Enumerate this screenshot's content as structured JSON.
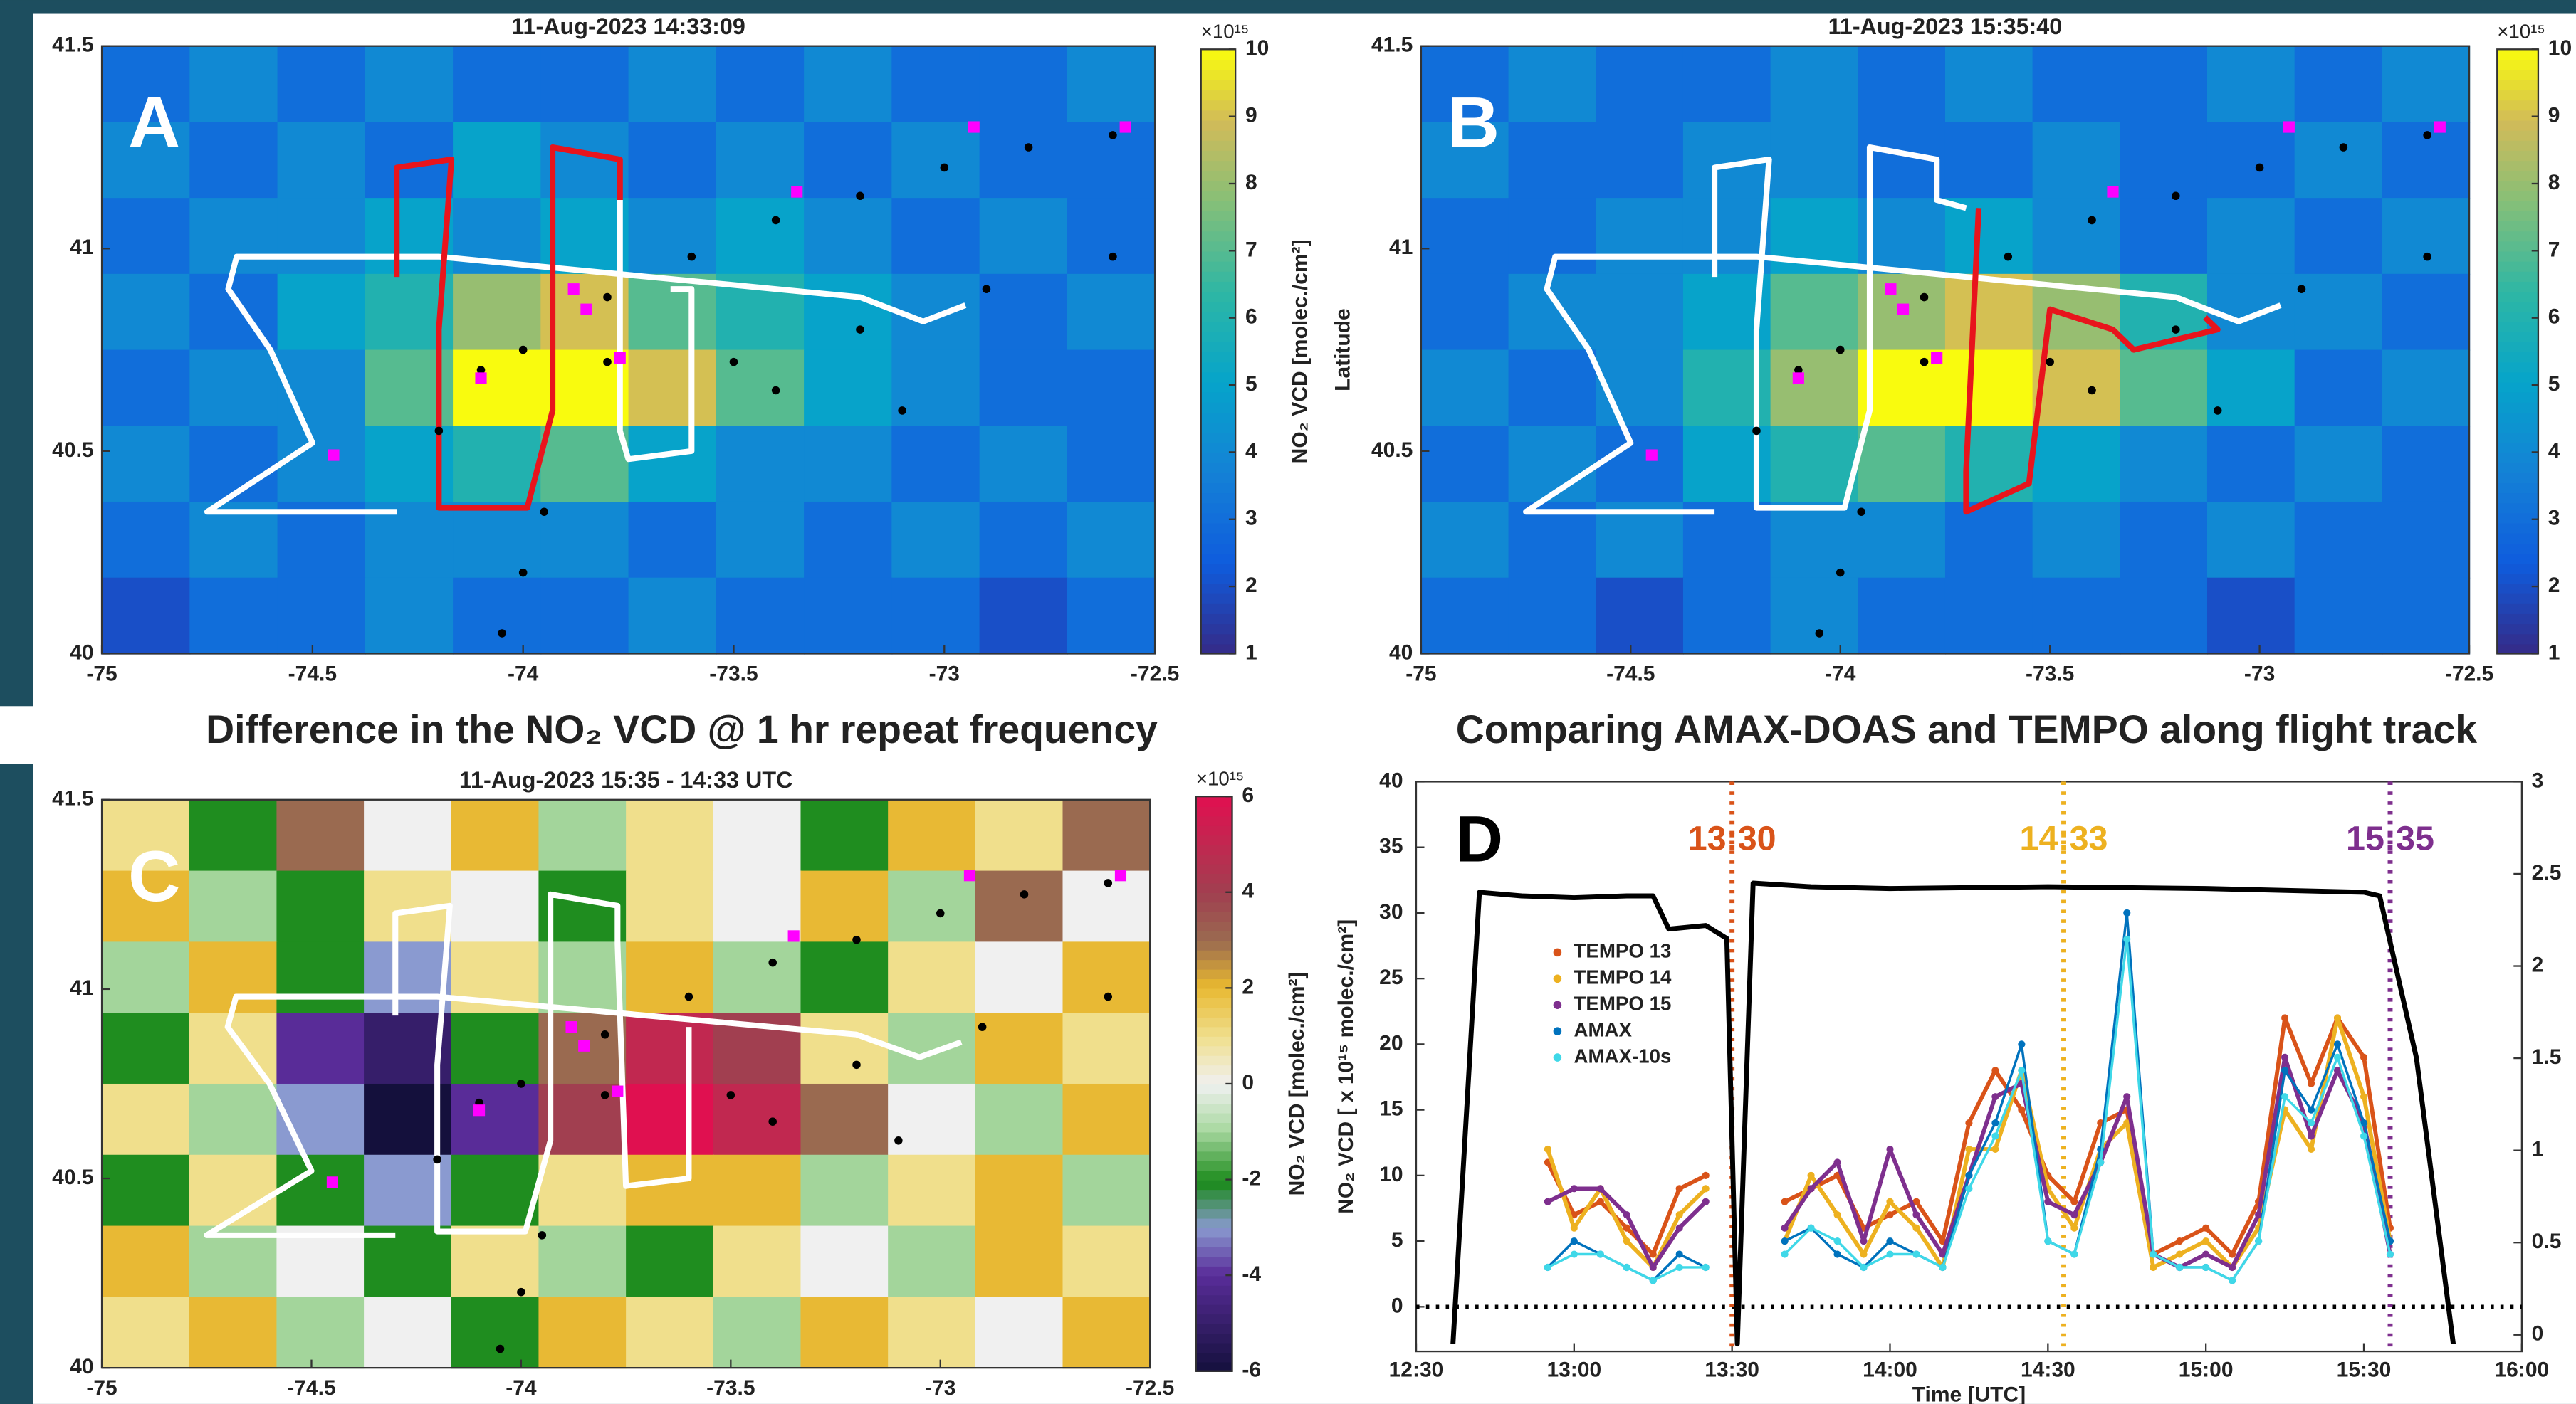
{
  "headings": [
    "Difference in the NO₂ VCD @ 1 hr repeat frequency",
    "Comparing AMAX-DOAS and TEMPO along flight track"
  ],
  "chart_data": [
    {
      "type": "heatmap",
      "title": "11-Aug-2023 14:33:09",
      "panel_label": "A",
      "colorbar_label": "NO₂ VCD [molec./cm²]",
      "exponent_label": "×10¹⁵",
      "colormap": "parula",
      "xlim": [
        -75,
        -72.5
      ],
      "ylim": [
        40,
        41.5
      ],
      "xticks": [
        -75,
        -74.5,
        -74,
        -73.5,
        -73,
        -72.5
      ],
      "yticks": [
        40,
        40.5,
        41,
        41.5
      ],
      "clim": [
        1,
        10
      ],
      "cticks": [
        1,
        2,
        3,
        4,
        5,
        6,
        7,
        8,
        9,
        10
      ],
      "z": [
        [
          3,
          4,
          3,
          4,
          3,
          3,
          4,
          3,
          4,
          3,
          3,
          4
        ],
        [
          4,
          3,
          4,
          3,
          5,
          4,
          3,
          4,
          3,
          4,
          3,
          3
        ],
        [
          3,
          4,
          4,
          5,
          4,
          5,
          4,
          5,
          4,
          3,
          4,
          3
        ],
        [
          4,
          3,
          5,
          6,
          8,
          9,
          7,
          6,
          5,
          4,
          3,
          4
        ],
        [
          3,
          4,
          4,
          7,
          10,
          10,
          9,
          7,
          5,
          4,
          3,
          3
        ],
        [
          4,
          3,
          4,
          5,
          6,
          7,
          5,
          4,
          4,
          3,
          4,
          3
        ],
        [
          3,
          4,
          3,
          4,
          4,
          4,
          3,
          4,
          3,
          4,
          3,
          4
        ],
        [
          2,
          3,
          3,
          4,
          3,
          3,
          4,
          3,
          3,
          3,
          2,
          3
        ]
      ],
      "tracks": [
        {
          "color": "#ffffff",
          "lon": [
            -74.3,
            -74.75,
            -74.5,
            -74.6,
            -74.7,
            -74.68,
            -74.2,
            -73.9,
            -73.7,
            -73.2,
            -73.05,
            -72.95
          ],
          "lat": [
            40.35,
            40.35,
            40.52,
            40.75,
            40.9,
            40.98,
            40.98,
            40.95,
            40.93,
            40.88,
            40.82,
            40.86
          ]
        },
        {
          "color": "#ffffff",
          "lon": [
            -73.77,
            -73.77,
            -73.75,
            -73.6,
            -73.6,
            -73.65
          ],
          "lat": [
            41.12,
            40.55,
            40.48,
            40.5,
            40.9,
            40.9
          ]
        },
        {
          "color": "#e8141c",
          "lon": [
            -74.3,
            -74.3,
            -74.17,
            -74.2,
            -74.2,
            -73.99,
            -73.93,
            -73.93,
            -73.77,
            -73.77
          ],
          "lat": [
            40.93,
            41.2,
            41.22,
            40.8,
            40.36,
            40.36,
            40.6,
            41.25,
            41.22,
            41.12
          ]
        }
      ],
      "dots": {
        "color": "#000000",
        "lon": [
          -74.2,
          -74.0,
          -73.8,
          -73.6,
          -73.4,
          -73.2,
          -73.0,
          -72.8,
          -72.6,
          -74.1,
          -73.8,
          -73.5,
          -73.2,
          -72.9,
          -72.6,
          -74.05,
          -74.0,
          -73.95,
          -73.4,
          -73.1
        ],
        "lat": [
          40.55,
          40.75,
          40.88,
          40.98,
          41.07,
          41.13,
          41.2,
          41.25,
          41.28,
          40.7,
          40.72,
          40.72,
          40.8,
          40.9,
          40.98,
          40.05,
          40.2,
          40.35,
          40.65,
          40.6
        ]
      },
      "sites": {
        "color": "#ff00ff",
        "lon": [
          -74.45,
          -74.1,
          -73.88,
          -73.85,
          -73.77,
          -73.35,
          -72.93,
          -72.57
        ],
        "lat": [
          40.49,
          40.68,
          40.9,
          40.85,
          40.73,
          41.14,
          41.3,
          41.3
        ]
      }
    },
    {
      "type": "heatmap",
      "title": "11-Aug-2023 15:35:40",
      "panel_label": "B",
      "ylabel": "Latitude",
      "exponent_label": "×10¹⁵",
      "colormap": "parula",
      "xlim": [
        -75,
        -72.5
      ],
      "ylim": [
        40,
        41.5
      ],
      "xticks": [
        -75,
        -74.5,
        -74,
        -73.5,
        -73,
        -72.5
      ],
      "yticks": [
        40,
        40.5,
        41,
        41.5
      ],
      "clim": [
        1,
        10
      ],
      "cticks": [
        1,
        2,
        3,
        4,
        5,
        6,
        7,
        8,
        9,
        10
      ],
      "z": [
        [
          3,
          4,
          3,
          3,
          4,
          3,
          4,
          3,
          3,
          4,
          3,
          4
        ],
        [
          4,
          3,
          3,
          4,
          4,
          3,
          3,
          4,
          3,
          3,
          4,
          3
        ],
        [
          3,
          3,
          4,
          4,
          5,
          4,
          5,
          4,
          3,
          4,
          3,
          4
        ],
        [
          3,
          4,
          4,
          5,
          7,
          8,
          9,
          8,
          6,
          4,
          4,
          3
        ],
        [
          4,
          3,
          4,
          6,
          8,
          10,
          10,
          9,
          7,
          5,
          3,
          4
        ],
        [
          3,
          4,
          3,
          5,
          6,
          7,
          6,
          5,
          4,
          3,
          4,
          3
        ],
        [
          4,
          3,
          4,
          3,
          4,
          4,
          3,
          4,
          3,
          4,
          3,
          3
        ],
        [
          3,
          3,
          2,
          3,
          4,
          3,
          3,
          3,
          3,
          2,
          3,
          3
        ]
      ],
      "tracks": [
        {
          "color": "#ffffff",
          "lon": [
            -74.3,
            -74.75,
            -74.5,
            -74.6,
            -74.7,
            -74.68,
            -74.2,
            -73.9,
            -73.7,
            -73.2,
            -73.05,
            -72.95
          ],
          "lat": [
            40.35,
            40.35,
            40.52,
            40.75,
            40.9,
            40.98,
            40.98,
            40.95,
            40.93,
            40.88,
            40.82,
            40.86
          ]
        },
        {
          "color": "#ffffff",
          "lon": [
            -74.3,
            -74.3,
            -74.17,
            -74.2,
            -74.2,
            -73.99,
            -73.93,
            -73.93,
            -73.77,
            -73.77,
            -73.7
          ],
          "lat": [
            40.93,
            41.2,
            41.22,
            40.8,
            40.36,
            40.36,
            40.6,
            41.25,
            41.22,
            41.12,
            41.1
          ]
        },
        {
          "color": "#e8141c",
          "lon": [
            -73.67,
            -73.7,
            -73.7,
            -73.55,
            -73.5,
            -73.35,
            -73.3,
            -73.1,
            -73.13
          ],
          "lat": [
            41.1,
            40.45,
            40.35,
            40.42,
            40.85,
            40.8,
            40.75,
            40.8,
            40.83
          ]
        }
      ],
      "dots": {
        "color": "#000000",
        "lon": [
          -74.2,
          -74.0,
          -73.8,
          -73.6,
          -73.4,
          -73.2,
          -73.0,
          -72.8,
          -72.6,
          -74.1,
          -73.8,
          -73.5,
          -73.2,
          -72.9,
          -72.6,
          -74.05,
          -74.0,
          -73.95,
          -73.4,
          -73.1
        ],
        "lat": [
          40.55,
          40.75,
          40.88,
          40.98,
          41.07,
          41.13,
          41.2,
          41.25,
          41.28,
          40.7,
          40.72,
          40.72,
          40.8,
          40.9,
          40.98,
          40.05,
          40.2,
          40.35,
          40.65,
          40.6
        ]
      },
      "sites": {
        "color": "#ff00ff",
        "lon": [
          -74.45,
          -74.1,
          -73.88,
          -73.85,
          -73.77,
          -73.35,
          -72.93,
          -72.57
        ],
        "lat": [
          40.49,
          40.68,
          40.9,
          40.85,
          40.73,
          41.14,
          41.3,
          41.3
        ]
      }
    },
    {
      "type": "heatmap",
      "title": "11-Aug-2023 15:35 - 14:33 UTC",
      "panel_label": "C",
      "colorbar_label": "NO₂ VCD [molec./cm²]",
      "exponent_label": "×10¹⁵",
      "colormap": "diverging",
      "xlim": [
        -75,
        -72.5
      ],
      "ylim": [
        40,
        41.5
      ],
      "xticks": [
        -75,
        -74.5,
        -74,
        -73.5,
        -73,
        -72.5
      ],
      "yticks": [
        40,
        40.5,
        41,
        41.5
      ],
      "clim": [
        -6,
        6
      ],
      "cticks": [
        -6,
        -4,
        -2,
        0,
        2,
        4,
        6
      ],
      "z": [
        [
          1,
          -2,
          3,
          0,
          2,
          -1,
          1,
          0,
          -2,
          2,
          1,
          3
        ],
        [
          2,
          -1,
          -2,
          1,
          0,
          -2,
          1,
          0,
          2,
          -1,
          3,
          0
        ],
        [
          -1,
          2,
          -2,
          -3,
          1,
          -1,
          2,
          -1,
          -2,
          1,
          0,
          2
        ],
        [
          -2,
          1,
          -4,
          -5,
          -2,
          3,
          5,
          4,
          1,
          -1,
          2,
          1
        ],
        [
          1,
          -1,
          -3,
          -6,
          -4,
          4,
          6,
          5,
          3,
          0,
          -1,
          2
        ],
        [
          -2,
          1,
          -2,
          -3,
          -2,
          1,
          2,
          2,
          -1,
          1,
          2,
          -1
        ],
        [
          2,
          -1,
          0,
          -2,
          1,
          -1,
          -2,
          1,
          0,
          -1,
          2,
          1
        ],
        [
          1,
          2,
          -1,
          0,
          -2,
          2,
          1,
          -1,
          2,
          1,
          0,
          2
        ]
      ],
      "tracks": [
        {
          "color": "#ffffff",
          "lon": [
            -74.3,
            -74.75,
            -74.5,
            -74.6,
            -74.7,
            -74.68,
            -74.2,
            -73.9,
            -73.7,
            -73.2,
            -73.05,
            -72.95
          ],
          "lat": [
            40.35,
            40.35,
            40.52,
            40.75,
            40.9,
            40.98,
            40.98,
            40.95,
            40.93,
            40.88,
            40.82,
            40.86
          ]
        },
        {
          "color": "#ffffff",
          "lon": [
            -74.3,
            -74.3,
            -74.17,
            -74.2,
            -74.2,
            -73.99,
            -73.93,
            -73.93,
            -73.77,
            -73.77,
            -73.75,
            -73.6,
            -73.6
          ],
          "lat": [
            40.93,
            41.2,
            41.22,
            40.8,
            40.36,
            40.36,
            40.6,
            41.25,
            41.22,
            41.12,
            40.48,
            40.5,
            40.9
          ]
        }
      ],
      "dots": {
        "color": "#000000",
        "lon": [
          -74.2,
          -74.0,
          -73.8,
          -73.6,
          -73.4,
          -73.2,
          -73.0,
          -72.8,
          -72.6,
          -74.1,
          -73.8,
          -73.5,
          -73.2,
          -72.9,
          -72.6,
          -74.05,
          -74.0,
          -73.95,
          -73.4,
          -73.1
        ],
        "lat": [
          40.55,
          40.75,
          40.88,
          40.98,
          41.07,
          41.13,
          41.2,
          41.25,
          41.28,
          40.7,
          40.72,
          40.72,
          40.8,
          40.9,
          40.98,
          40.05,
          40.2,
          40.35,
          40.65,
          40.6
        ]
      },
      "sites": {
        "color": "#ff00ff",
        "lon": [
          -74.45,
          -74.1,
          -73.88,
          -73.85,
          -73.77,
          -73.35,
          -72.93,
          -72.57
        ],
        "lat": [
          40.49,
          40.68,
          40.9,
          40.85,
          40.73,
          41.14,
          41.3,
          41.3
        ]
      }
    },
    {
      "type": "line",
      "panel_label": "D",
      "xlabel": "Time [UTC]",
      "ylabel": "NO₂ VCD [ x 10¹⁵ molec./cm²]",
      "legend": "upper left",
      "xlim": [
        "12:30",
        "16:00"
      ],
      "xticks": [
        "12:30",
        "13:00",
        "13:30",
        "14:00",
        "14:30",
        "15:00",
        "15:30",
        "16:00"
      ],
      "ylim": [
        -3.4,
        40
      ],
      "yticks": [
        0,
        5,
        10,
        15,
        20,
        25,
        30,
        35,
        40
      ],
      "y2lim": [
        -0.09,
        3
      ],
      "y2ticks": [
        0,
        0.5,
        1,
        1.5,
        2,
        2.5,
        3
      ],
      "x": [
        "12:55",
        "13:00",
        "13:05",
        "13:10",
        "13:15",
        "13:20",
        "13:25",
        "13:30",
        "13:40",
        "13:45",
        "13:50",
        "13:55",
        "14:00",
        "14:05",
        "14:10",
        "14:15",
        "14:20",
        "14:25",
        "14:30",
        "14:35",
        "14:40",
        "14:45",
        "14:50",
        "14:55",
        "15:00",
        "15:05",
        "15:10",
        "15:15",
        "15:20",
        "15:25",
        "15:30",
        "15:35"
      ],
      "series": [
        {
          "name": "TEMPO 13",
          "color": "#d95319",
          "values": [
            11,
            7,
            8,
            6,
            4,
            9,
            10,
            null,
            8,
            9,
            10,
            6,
            7,
            8,
            5,
            14,
            18,
            15,
            10,
            8,
            14,
            15,
            4,
            5,
            6,
            4,
            8,
            22,
            17,
            22,
            19,
            6
          ]
        },
        {
          "name": "TEMPO 14",
          "color": "#edb120",
          "values": [
            12,
            6,
            9,
            5,
            3,
            7,
            9,
            null,
            5,
            10,
            7,
            4,
            8,
            6,
            3,
            12,
            12,
            18,
            9,
            6,
            12,
            14,
            3,
            4,
            5,
            3,
            6,
            15,
            12,
            22,
            16,
            5
          ]
        },
        {
          "name": "TEMPO 15",
          "color": "#7e2f8e",
          "values": [
            8,
            9,
            9,
            7,
            3,
            6,
            8,
            null,
            6,
            9,
            11,
            5,
            12,
            7,
            4,
            10,
            16,
            17,
            8,
            7,
            11,
            16,
            4,
            3,
            4,
            3,
            7,
            19,
            13,
            18,
            14,
            4
          ]
        },
        {
          "name": "AMAX",
          "color": "#0072bd",
          "values": [
            3,
            5,
            4,
            3,
            2,
            4,
            3,
            null,
            5,
            6,
            4,
            3,
            5,
            4,
            3,
            10,
            14,
            20,
            5,
            4,
            12,
            30,
            4,
            3,
            3,
            2,
            5,
            18,
            15,
            20,
            14,
            5
          ]
        },
        {
          "name": "AMAX-10s",
          "color": "#3fd8e8",
          "values": [
            3,
            4,
            4,
            3,
            2,
            3,
            3,
            null,
            4,
            6,
            5,
            3,
            4,
            4,
            3,
            9,
            13,
            18,
            5,
            4,
            11,
            28,
            4,
            3,
            3,
            2,
            5,
            16,
            14,
            19,
            13,
            4
          ]
        }
      ],
      "altitude": {
        "color": "#000000",
        "axis": "y2",
        "x": [
          "12:37",
          "12:42",
          "12:50",
          "13:00",
          "13:10",
          "13:15",
          "13:18",
          "13:25",
          "13:29",
          "13:31",
          "13:34",
          "13:45",
          "14:00",
          "14:30",
          "15:00",
          "15:30",
          "15:33",
          "15:40",
          "15:47"
        ],
        "values": [
          -0.05,
          2.4,
          2.38,
          2.37,
          2.38,
          2.38,
          2.2,
          2.22,
          2.15,
          -0.05,
          2.45,
          2.43,
          2.42,
          2.43,
          2.42,
          2.4,
          2.38,
          1.5,
          -0.05
        ]
      },
      "reference_line": 0,
      "vlines": [
        {
          "x": "13:30",
          "color": "#d95319"
        },
        {
          "x": "14:33",
          "color": "#edb120"
        },
        {
          "x": "15:35",
          "color": "#7e2f8e"
        }
      ]
    }
  ]
}
